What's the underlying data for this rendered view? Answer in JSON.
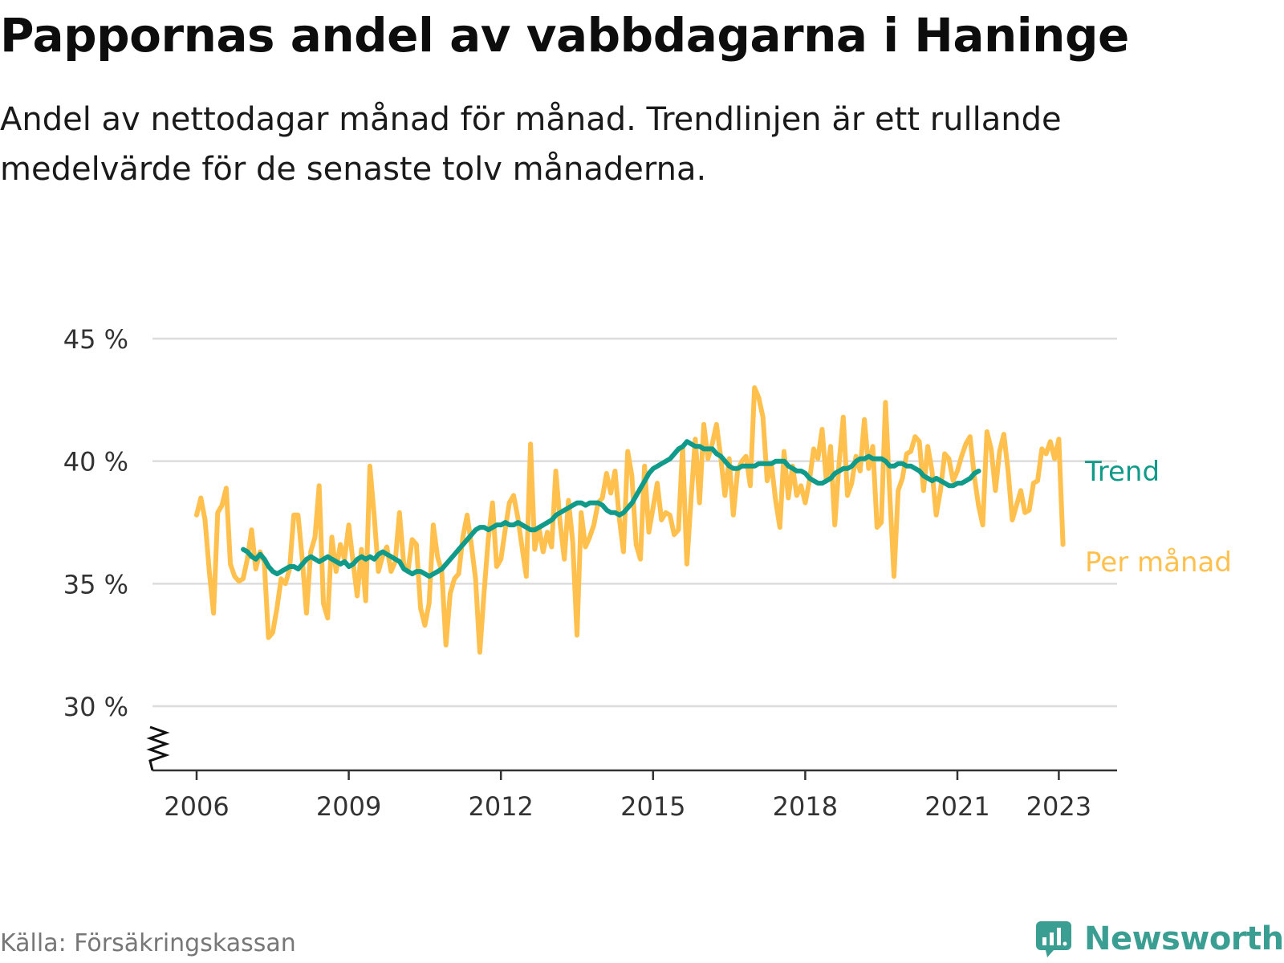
{
  "header": {
    "title": "Pappornas andel av vabbdagarna i Haninge",
    "subtitle": "Andel av nettodagar månad för månad. Trendlinjen är ett rullande medelvärde för de senaste tolv månaderna."
  },
  "footer": {
    "source": "Källa: Försäkringskassan",
    "brand": "Newsworthy"
  },
  "colors": {
    "monthly": "#ffc04d",
    "trend": "#109a8a",
    "grid": "#dcdcdc",
    "axis": "#333333",
    "brand": "#3a9e92"
  },
  "chart_data": {
    "type": "line",
    "x_unit": "year",
    "y_unit": "%",
    "ylim": [
      30,
      45
    ],
    "xlim": [
      2006,
      2024.2
    ],
    "y_ticks": [
      30,
      35,
      40,
      45
    ],
    "y_tick_labels": [
      "30 %",
      "35 %",
      "40 %",
      "45 %"
    ],
    "x_ticks": [
      2006,
      2009,
      2012,
      2015,
      2018,
      2021,
      2023
    ],
    "x_tick_labels": [
      "2006",
      "2009",
      "2012",
      "2015",
      "2018",
      "2021",
      "2023"
    ],
    "axis_break": true,
    "grid": true,
    "legend": "direct labels at right end of lines",
    "series": [
      {
        "name": "Per månad",
        "x_start": 2006.0,
        "x_step": 0.08333,
        "values": [
          37.8,
          38.5,
          37.6,
          35.5,
          33.8,
          37.9,
          38.2,
          38.9,
          35.8,
          35.3,
          35.1,
          35.2,
          36.0,
          37.2,
          35.6,
          36.3,
          35.9,
          32.8,
          33.0,
          34.0,
          35.2,
          35.0,
          35.6,
          37.8,
          37.8,
          36.0,
          33.8,
          36.3,
          36.9,
          39.0,
          34.2,
          33.6,
          36.9,
          35.5,
          36.6,
          36.0,
          37.4,
          35.9,
          34.5,
          36.4,
          34.3,
          39.8,
          37.8,
          35.5,
          36.1,
          36.5,
          35.5,
          35.9,
          37.9,
          35.8,
          35.5,
          36.8,
          36.6,
          34.0,
          33.3,
          34.2,
          37.4,
          36.1,
          35.5,
          32.5,
          34.6,
          35.2,
          35.4,
          36.9,
          37.8,
          36.6,
          35.2,
          32.2,
          34.6,
          36.8,
          38.3,
          35.7,
          36.0,
          37.2,
          38.3,
          38.6,
          37.7,
          36.5,
          35.3,
          40.7,
          36.4,
          37.3,
          36.3,
          37.1,
          36.5,
          39.6,
          37.5,
          36.0,
          38.4,
          36.7,
          32.9,
          37.9,
          36.5,
          36.9,
          37.4,
          38.3,
          38.5,
          39.5,
          38.7,
          39.6,
          37.7,
          36.3,
          40.4,
          39.4,
          36.6,
          36.0,
          39.8,
          37.1,
          38.1,
          39.1,
          37.6,
          37.9,
          37.8,
          37.0,
          37.2,
          40.6,
          35.8,
          38.5,
          40.9,
          38.3,
          41.5,
          40.1,
          40.7,
          41.5,
          40.2,
          38.6,
          40.1,
          37.8,
          39.6,
          40.0,
          40.2,
          39.0,
          43.0,
          42.6,
          41.8,
          39.2,
          39.9,
          38.4,
          37.3,
          40.4,
          38.5,
          39.8,
          38.6,
          39.0,
          38.3,
          39.2,
          40.5,
          40.1,
          41.3,
          39.2,
          40.6,
          37.4,
          39.9,
          41.8,
          38.6,
          39.1,
          40.2,
          39.6,
          41.7,
          39.7,
          40.6,
          37.3,
          37.5,
          42.4,
          38.7,
          35.3,
          38.8,
          39.3,
          40.3,
          40.4,
          41.0,
          40.8,
          38.8,
          40.6,
          39.6,
          37.8,
          38.8,
          40.3,
          40.1,
          39.2,
          39.6,
          40.2,
          40.7,
          41.0,
          39.4,
          38.2,
          37.4,
          41.2,
          40.5,
          38.8,
          40.4,
          41.1,
          39.6,
          37.6,
          38.2,
          38.8,
          37.9,
          38.0,
          39.1,
          39.2,
          40.5,
          40.3,
          40.8,
          40.1,
          40.9,
          36.6
        ]
      },
      {
        "name": "Trend",
        "x_start": 2006.92,
        "x_step": 0.08333,
        "values": [
          36.4,
          36.3,
          36.1,
          36.0,
          36.2,
          36.0,
          35.7,
          35.5,
          35.4,
          35.5,
          35.6,
          35.7,
          35.7,
          35.6,
          35.8,
          36.0,
          36.1,
          36.0,
          35.9,
          36.0,
          36.1,
          36.0,
          35.9,
          35.8,
          35.9,
          35.7,
          35.8,
          36.0,
          36.1,
          36.0,
          36.1,
          36.0,
          36.2,
          36.3,
          36.2,
          36.1,
          36.0,
          35.9,
          35.6,
          35.5,
          35.4,
          35.5,
          35.5,
          35.4,
          35.3,
          35.4,
          35.5,
          35.6,
          35.8,
          36.0,
          36.2,
          36.4,
          36.6,
          36.8,
          37.0,
          37.2,
          37.3,
          37.3,
          37.2,
          37.3,
          37.4,
          37.4,
          37.5,
          37.4,
          37.4,
          37.5,
          37.4,
          37.3,
          37.2,
          37.2,
          37.3,
          37.4,
          37.5,
          37.6,
          37.8,
          37.9,
          38.0,
          38.1,
          38.2,
          38.3,
          38.3,
          38.2,
          38.3,
          38.3,
          38.3,
          38.2,
          38.0,
          37.9,
          37.9,
          37.8,
          37.9,
          38.1,
          38.3,
          38.6,
          38.9,
          39.2,
          39.5,
          39.7,
          39.8,
          39.9,
          40.0,
          40.1,
          40.3,
          40.5,
          40.6,
          40.8,
          40.7,
          40.6,
          40.6,
          40.5,
          40.5,
          40.5,
          40.3,
          40.2,
          40.0,
          39.8,
          39.7,
          39.7,
          39.8,
          39.8,
          39.8,
          39.8,
          39.9,
          39.9,
          39.9,
          39.9,
          40.0,
          40.0,
          40.0,
          39.8,
          39.7,
          39.6,
          39.6,
          39.5,
          39.3,
          39.2,
          39.1,
          39.1,
          39.2,
          39.3,
          39.5,
          39.6,
          39.7,
          39.7,
          39.8,
          40.0,
          40.1,
          40.1,
          40.2,
          40.1,
          40.1,
          40.1,
          40.0,
          39.8,
          39.8,
          39.9,
          39.9,
          39.8,
          39.8,
          39.7,
          39.6,
          39.4,
          39.3,
          39.2,
          39.3,
          39.2,
          39.1,
          39.0,
          39.0,
          39.1,
          39.1,
          39.2,
          39.3,
          39.5,
          39.6
        ]
      }
    ]
  }
}
